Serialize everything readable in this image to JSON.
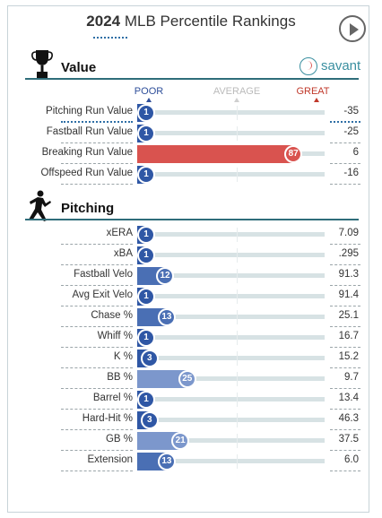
{
  "header": {
    "year": "2024",
    "title": "MLB Percentile Rankings"
  },
  "legend": {
    "poor": "POOR",
    "average": "AVERAGE",
    "great": "GREAT"
  },
  "sections": {
    "value": {
      "title": "Value",
      "logo_text": "savant",
      "rows": [
        {
          "label": "Pitching Run Value",
          "percentile": 1,
          "value": "-35"
        },
        {
          "label": "Fastball Run Value",
          "percentile": 1,
          "value": "-25"
        },
        {
          "label": "Breaking Run Value",
          "percentile": 87,
          "value": "6"
        },
        {
          "label": "Offspeed Run Value",
          "percentile": 1,
          "value": "-16"
        }
      ]
    },
    "pitching": {
      "title": "Pitching",
      "rows": [
        {
          "label": "xERA",
          "percentile": 1,
          "value": "7.09"
        },
        {
          "label": "xBA",
          "percentile": 1,
          "value": ".295"
        },
        {
          "label": "Fastball Velo",
          "percentile": 12,
          "value": "91.3"
        },
        {
          "label": "Avg Exit Velo",
          "percentile": 1,
          "value": "91.4"
        },
        {
          "label": "Chase %",
          "percentile": 13,
          "value": "25.1"
        },
        {
          "label": "Whiff %",
          "percentile": 1,
          "value": "16.7"
        },
        {
          "label": "K %",
          "percentile": 3,
          "value": "15.2"
        },
        {
          "label": "BB %",
          "percentile": 25,
          "value": "9.7"
        },
        {
          "label": "Barrel %",
          "percentile": 1,
          "value": "13.4"
        },
        {
          "label": "Hard-Hit %",
          "percentile": 3,
          "value": "46.3"
        },
        {
          "label": "GB %",
          "percentile": 21,
          "value": "37.5"
        },
        {
          "label": "Extension",
          "percentile": 13,
          "value": "6.0"
        }
      ]
    }
  },
  "colors": {
    "poor": "#2f57a5",
    "low": "#4a6fb4",
    "mid_low": "#7c97cc",
    "great": "#d9534f",
    "track": "#d7e2e4",
    "accent": "#2f6d7a"
  }
}
